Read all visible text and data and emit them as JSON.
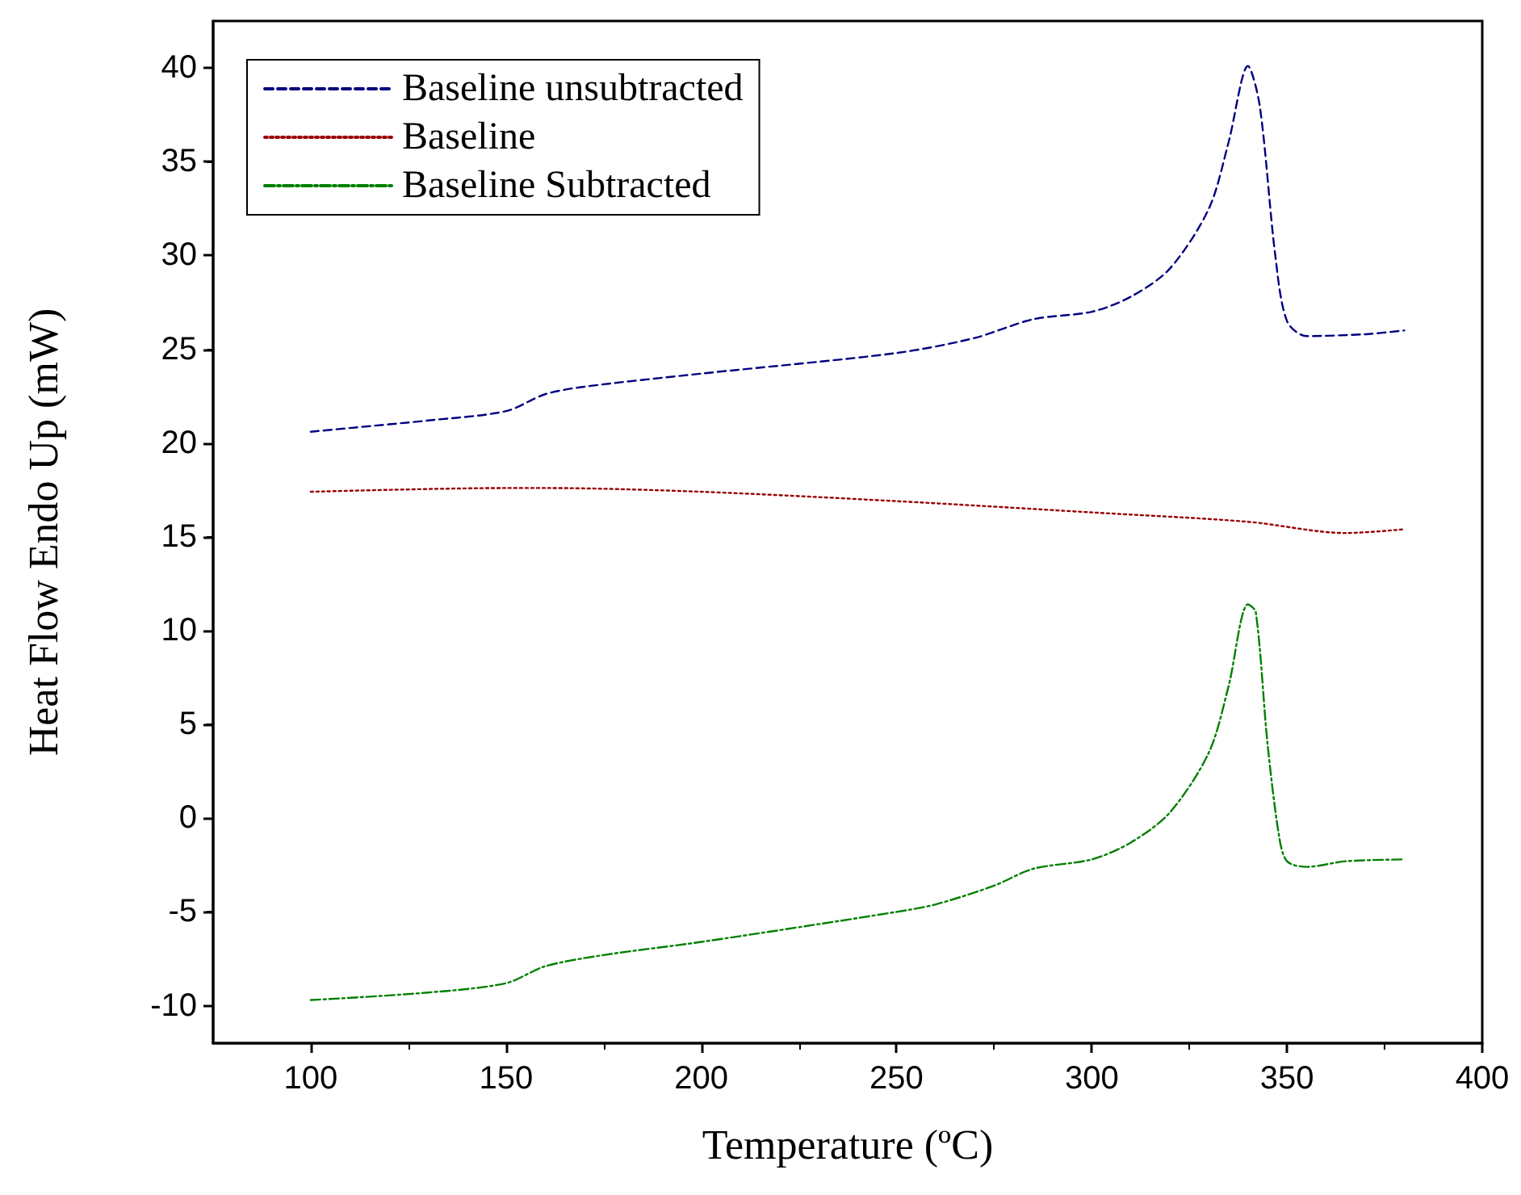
{
  "chart_data": {
    "type": "line",
    "xlabel": "Temperature (ºC)",
    "ylabel": "Heat Flow Endo Up (mW)",
    "xlim": [
      75,
      400
    ],
    "xticks": [
      100,
      150,
      200,
      250,
      300,
      350,
      400
    ],
    "ylim": [
      -12,
      42.5
    ],
    "yticks": [
      -10,
      -5,
      0,
      5,
      10,
      15,
      20,
      25,
      30,
      35,
      40
    ],
    "grid": false,
    "legend": "top left",
    "marker": "none",
    "series": [
      {
        "name": "Baseline unsubtracted",
        "color": "#000080",
        "line_style": "dashed",
        "x": [
          100,
          110,
          130,
          150,
          160,
          170,
          200,
          250,
          270,
          285,
          300,
          310,
          320,
          330,
          335,
          340,
          343,
          347,
          350,
          355,
          370,
          380
        ],
        "values": [
          20.6,
          20.8,
          21.2,
          21.7,
          22.6,
          23.0,
          23.7,
          24.8,
          25.6,
          26.6,
          27.0,
          27.8,
          29.3,
          32.5,
          36,
          40.1,
          38,
          30,
          26.5,
          25.7,
          25.8,
          26.0
        ]
      },
      {
        "name": "Baseline",
        "color": "#990000",
        "line_style": "dotted",
        "x": [
          100,
          150,
          160,
          200,
          250,
          300,
          340,
          365,
          380
        ],
        "values": [
          17.4,
          17.6,
          17.6,
          17.4,
          16.9,
          16.3,
          15.8,
          15.2,
          15.4
        ]
      },
      {
        "name": "Baseline Subtracted",
        "color": "#008000",
        "line_style": "dashdot",
        "x": [
          100,
          130,
          150,
          160,
          175,
          200,
          250,
          260,
          275,
          285,
          300,
          310,
          320,
          330,
          335,
          340,
          342,
          345,
          348,
          350,
          355,
          365,
          380
        ],
        "values": [
          -9.7,
          -9.3,
          -8.8,
          -7.9,
          -7.3,
          -6.6,
          -5.0,
          -4.6,
          -3.6,
          -2.7,
          -2.2,
          -1.3,
          0.3,
          3.5,
          7,
          11.4,
          11,
          4,
          -1,
          -2.3,
          -2.6,
          -2.3,
          -2.2
        ]
      }
    ]
  }
}
